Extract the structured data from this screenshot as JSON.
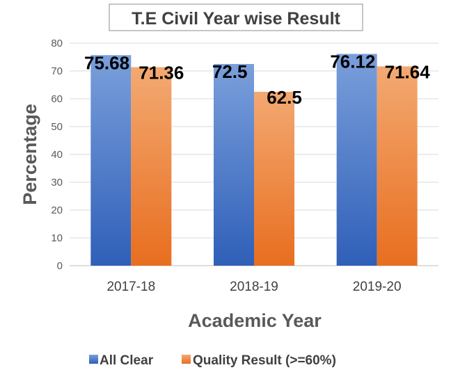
{
  "chart_data": {
    "type": "bar",
    "title": "T.E Civil Year wise Result",
    "xlabel": "Academic Year",
    "ylabel": "Percentage",
    "categories": [
      "2017-18",
      "2018-19",
      "2019-20"
    ],
    "series": [
      {
        "name": "All Clear",
        "values": [
          75.68,
          72.5,
          76.12
        ],
        "color": "#4472c4"
      },
      {
        "name": "Quality Result (>=60%)",
        "values": [
          71.36,
          62.5,
          71.64
        ],
        "color": "#ed7d31"
      }
    ],
    "ylim": [
      0,
      80
    ],
    "yticks": [
      0,
      10,
      20,
      30,
      40,
      50,
      60,
      70,
      80
    ],
    "grid": true,
    "legend": "bottom"
  }
}
